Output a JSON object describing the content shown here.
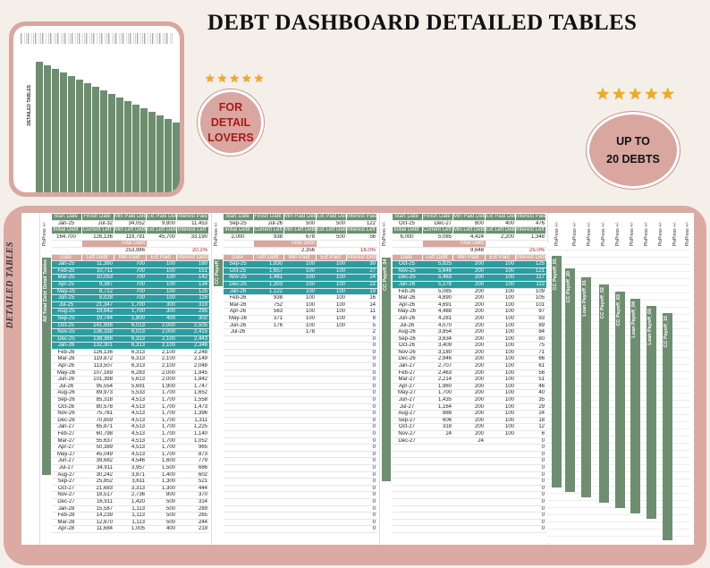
{
  "title": "DEBT DASHBOARD DETAILED TABLES",
  "badges": {
    "detail": [
      "FOR",
      "DETAIL",
      "LOVERS"
    ],
    "debts": [
      "UP TO",
      "20 DEBTS"
    ],
    "stars_count": 5
  },
  "preview": {
    "vertical_label": "DETAILED TABLES"
  },
  "side_label": "DETAILED TABLES",
  "colors": {
    "green": "#6d8f70",
    "teal": "#2b9da1",
    "pink": "#d9a79f",
    "red": "#a51c1c"
  },
  "group_tabs": [
    "All Total Debt Detail Tables",
    "CC Payoff_01",
    "CC Payoff_04"
  ],
  "side_bars": [
    "CC Payoff_01",
    "CC Payoff_20",
    "Loan Payoff_01",
    "CC Payoff_02",
    "CC Payoff_03",
    "Loan Payoff_04",
    "Loan Payoff_03",
    "CC Payoff_15"
  ],
  "plis_label": "PlsPress +/-",
  "table_headers": {
    "top1": [
      "Start Date",
      "Finish Date",
      "Min Paid Debt",
      "Ext Paid Debt",
      "Interest Paid"
    ],
    "top2": [
      "Initial Debt",
      "Current Left",
      "Min Left Debt",
      "Ext Left Debt",
      "Interest Left"
    ],
    "total": "Total Debt",
    "cols": [
      "Date",
      "Left Debt",
      "Min Paid",
      "Ext Paid",
      "Interest Debt"
    ]
  },
  "table_a": {
    "top1": [
      "Jan-25",
      "Jul-32",
      "34,052",
      "9,800",
      "11,453"
    ],
    "top2": [
      "164,700",
      "126,136",
      "119,791",
      "45,700",
      "33,190"
    ],
    "total": "253,986",
    "pct": "20.1%",
    "rows": [
      [
        "Jan-25",
        "11,360",
        "700",
        "100",
        "160"
      ],
      [
        "Feb-25",
        "10,711",
        "700",
        "100",
        "151"
      ],
      [
        "Mar-25",
        "10,053",
        "700",
        "100",
        "142"
      ],
      [
        "Apr-25",
        "9,387",
        "700",
        "100",
        "134"
      ],
      [
        "May-25",
        "8,712",
        "700",
        "100",
        "125"
      ],
      [
        "Jun-25",
        "8,028",
        "700",
        "100",
        "116"
      ],
      [
        "Jul-25",
        "21,347",
        "1,700",
        "300",
        "319"
      ],
      [
        "Aug-25",
        "19,642",
        "1,700",
        "300",
        "295"
      ],
      [
        "Sep-25",
        "19,744",
        "1,800",
        "400",
        "302"
      ],
      [
        "Oct-25",
        "141,936",
        "6,013",
        "2,000",
        "2,505"
      ],
      [
        "Nov-25",
        "136,338",
        "6,013",
        "2,000",
        "2,415"
      ],
      [
        "Dec-25",
        "138,366",
        "6,313",
        "2,100",
        "2,443"
      ],
      [
        "Jan-26",
        "132,301",
        "6,313",
        "2,100",
        "2,346"
      ],
      [
        "Feb-26",
        "126,136",
        "6,313",
        "2,100",
        "2,248"
      ],
      [
        "Mar-26",
        "119,872",
        "6,313",
        "2,100",
        "2,149"
      ],
      [
        "Apr-26",
        "113,507",
        "6,313",
        "2,100",
        "2,048"
      ],
      [
        "May-26",
        "107,169",
        "6,283",
        "2,000",
        "1,945"
      ],
      [
        "Jun-26",
        "101,398",
        "5,613",
        "2,000",
        "1,842"
      ],
      [
        "Jul-26",
        "95,554",
        "5,691",
        "1,900",
        "1,747"
      ],
      [
        "Aug-26",
        "89,973",
        "5,533",
        "1,700",
        "1,652"
      ],
      [
        "Sep-26",
        "85,318",
        "4,513",
        "1,700",
        "1,558"
      ],
      [
        "Oct-26",
        "80,578",
        "4,513",
        "1,700",
        "1,473"
      ],
      [
        "Nov-26",
        "75,761",
        "4,513",
        "1,700",
        "1,396"
      ],
      [
        "Dec-26",
        "70,859",
        "4,513",
        "1,700",
        "1,311"
      ],
      [
        "Jan-27",
        "65,871",
        "4,513",
        "1,700",
        "1,225"
      ],
      [
        "Feb-27",
        "60,798",
        "4,513",
        "1,700",
        "1,140"
      ],
      [
        "Mar-27",
        "55,637",
        "4,513",
        "1,700",
        "1,052"
      ],
      [
        "Apr-27",
        "50,389",
        "4,513",
        "1,700",
        "965"
      ],
      [
        "May-27",
        "45,049",
        "4,513",
        "1,700",
        "873"
      ],
      [
        "Jun-27",
        "39,682",
        "4,546",
        "1,600",
        "779"
      ],
      [
        "Jul-27",
        "34,911",
        "3,957",
        "1,500",
        "686"
      ],
      [
        "Aug-27",
        "30,242",
        "3,871",
        "1,400",
        "602"
      ],
      [
        "Sep-27",
        "25,852",
        "3,611",
        "1,300",
        "521"
      ],
      [
        "Oct-27",
        "21,683",
        "3,313",
        "1,300",
        "444"
      ],
      [
        "Nov-27",
        "18,517",
        "2,736",
        "800",
        "370"
      ],
      [
        "Dec-27",
        "16,911",
        "1,420",
        "500",
        "314"
      ],
      [
        "Jan-28",
        "15,587",
        "1,113",
        "500",
        "289"
      ],
      [
        "Feb-28",
        "14,239",
        "1,113",
        "500",
        "265"
      ],
      [
        "Mar-28",
        "12,870",
        "1,113",
        "500",
        "244"
      ],
      [
        "Apr-28",
        "11,684",
        "1,005",
        "400",
        "219"
      ]
    ],
    "teal_count": 13
  },
  "table_b": {
    "top1": [
      "Sep-25",
      "Jul-26",
      "500",
      "500",
      "122"
    ],
    "top2": [
      "2,000",
      "938",
      "678",
      "500",
      "56"
    ],
    "total": "2,356",
    "pct": "18.0%",
    "rows": [
      [
        "Sep-25",
        "1,830",
        "100",
        "100",
        "30"
      ],
      [
        "Oct-25",
        "1,657",
        "100",
        "100",
        "27"
      ],
      [
        "Nov-25",
        "1,481",
        "100",
        "100",
        "24"
      ],
      [
        "Dec-25",
        "1,303",
        "100",
        "100",
        "22"
      ],
      [
        "Jan-26",
        "1,122",
        "100",
        "100",
        "19"
      ],
      [
        "Feb-26",
        "938",
        "100",
        "100",
        "16"
      ],
      [
        "Mar-26",
        "752",
        "100",
        "100",
        "14"
      ],
      [
        "Apr-26",
        "563",
        "100",
        "100",
        "11"
      ],
      [
        "May-26",
        "371",
        "100",
        "100",
        "8"
      ],
      [
        "Jun-26",
        "176",
        "100",
        "100",
        "5"
      ],
      [
        "Jul-26",
        "",
        "178",
        "",
        "2"
      ]
    ],
    "teal_count": 5,
    "zeros": [
      "0",
      "0",
      "0",
      "0",
      "0",
      "0",
      "0",
      "0",
      "0",
      "0",
      "0",
      "0",
      "0",
      "0",
      "0",
      "0",
      "0",
      "0",
      "0",
      "0",
      "0",
      "0",
      "0",
      "0",
      "0",
      "0",
      "0",
      "0",
      "0"
    ]
  },
  "table_c": {
    "top1": [
      "Oct-25",
      "Dec-27",
      "800",
      "400",
      "476"
    ],
    "top2": [
      "6,000",
      "5,085",
      "4,424",
      "2,200",
      "1,348"
    ],
    "total": "9,648",
    "pct": "25.0%",
    "rows": [
      [
        "Oct-25",
        "5,825",
        "200",
        "100",
        "125"
      ],
      [
        "Nov-25",
        "5,646",
        "200",
        "100",
        "121"
      ],
      [
        "Dec-25",
        "5,463",
        "200",
        "100",
        "117"
      ],
      [
        "Jan-26",
        "5,278",
        "200",
        "100",
        "113"
      ],
      [
        "Feb-26",
        "5,085",
        "200",
        "100",
        "109"
      ],
      [
        "Mar-26",
        "4,890",
        "200",
        "100",
        "105"
      ],
      [
        "Apr-26",
        "4,691",
        "200",
        "100",
        "101"
      ],
      [
        "May-26",
        "4,488",
        "200",
        "100",
        "97"
      ],
      [
        "Jun-26",
        "4,281",
        "200",
        "100",
        "93"
      ],
      [
        "Jul-26",
        "4,070",
        "200",
        "100",
        "89"
      ],
      [
        "Aug-26",
        "3,854",
        "200",
        "100",
        "84"
      ],
      [
        "Sep-26",
        "3,634",
        "200",
        "100",
        "80"
      ],
      [
        "Oct-26",
        "3,409",
        "200",
        "100",
        "75"
      ],
      [
        "Nov-26",
        "3,180",
        "200",
        "100",
        "71"
      ],
      [
        "Dec-26",
        "2,946",
        "200",
        "100",
        "66"
      ],
      [
        "Jan-27",
        "2,707",
        "200",
        "100",
        "61"
      ],
      [
        "Feb-27",
        "2,463",
        "200",
        "100",
        "56"
      ],
      [
        "Mar-27",
        "2,214",
        "200",
        "100",
        "51"
      ],
      [
        "Apr-27",
        "1,960",
        "200",
        "100",
        "46"
      ],
      [
        "May-27",
        "1,700",
        "200",
        "100",
        "40"
      ],
      [
        "Jun-27",
        "1,435",
        "200",
        "100",
        "35"
      ],
      [
        "Jul-27",
        "1,164",
        "200",
        "100",
        "29"
      ],
      [
        "Aug-27",
        "888",
        "200",
        "100",
        "24"
      ],
      [
        "Sep-27",
        "606",
        "200",
        "100",
        "18"
      ],
      [
        "Oct-27",
        "318",
        "200",
        "100",
        "12"
      ],
      [
        "Nov-27",
        "24",
        "200",
        "100",
        "6"
      ],
      [
        "Dec-27",
        "",
        "24",
        "",
        "0"
      ]
    ],
    "teal_count": 4,
    "zeros": [
      "0",
      "0",
      "0",
      "0",
      "0",
      "0",
      "0",
      "0",
      "0",
      "0",
      "0",
      "0",
      "0"
    ]
  }
}
